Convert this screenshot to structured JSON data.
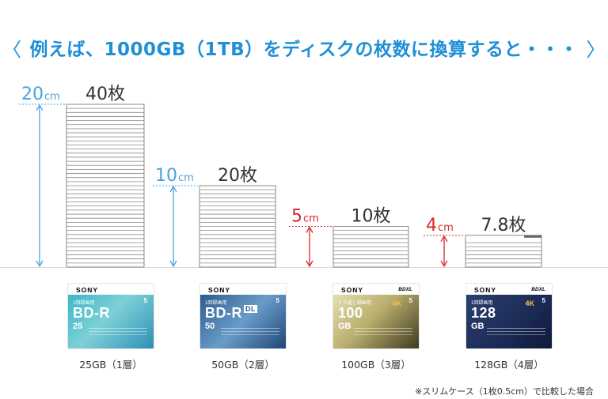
{
  "headline": {
    "left_chevron": "〈",
    "text": "例えば、1000GB（1TB）をディスクの枚数に換算すると・・・",
    "right_chevron": "〉"
  },
  "colors": {
    "accent": "#1f8fd6",
    "height_marker_red": "#d9262b",
    "height_marker_blue": "#4aa3e0",
    "disc_line": "#8a8a8a",
    "baseline": "#d9d9d9"
  },
  "chart_data": {
    "type": "bar",
    "title": "",
    "categories": [
      "25GB（1層）",
      "50GB（2層）",
      "100GB（3層）",
      "128GB（4層）"
    ],
    "series": [
      {
        "name": "枚数",
        "values": [
          40,
          20,
          10,
          7.8
        ]
      }
    ],
    "count_labels": [
      "40枚",
      "20枚",
      "10枚",
      "7.8枚"
    ],
    "stack_heights_cm": [
      20,
      10,
      5,
      4
    ],
    "height_labels": [
      {
        "value": "20",
        "unit": "cm",
        "color": "blue"
      },
      {
        "value": "10",
        "unit": "cm",
        "color": "blue"
      },
      {
        "value": "5",
        "unit": "cm",
        "color": "red"
      },
      {
        "value": "4",
        "unit": "cm",
        "color": "red"
      }
    ],
    "unit_per_disc_cm": 0.5,
    "grid": false
  },
  "products": [
    {
      "brand": "SONY",
      "tag": "1回録画用",
      "big": "BD-R",
      "capacity": "25",
      "pack": "5",
      "extra": ""
    },
    {
      "brand": "SONY",
      "tag": "1回録画用",
      "big": "BD-R",
      "capacity": "50",
      "pack": "5",
      "extra": "DL"
    },
    {
      "brand": "SONY",
      "tag": "くり返し録画用",
      "big": "100",
      "capacity": "GB",
      "pack": "5",
      "extra": "BDXL"
    },
    {
      "brand": "SONY",
      "tag": "1回録画用",
      "big": "128",
      "capacity": "GB",
      "pack": "5",
      "extra": "BDXL"
    }
  ],
  "product_k4": "4K",
  "footnote": "※スリムケース（1枚0.5cm）で比較した場合"
}
